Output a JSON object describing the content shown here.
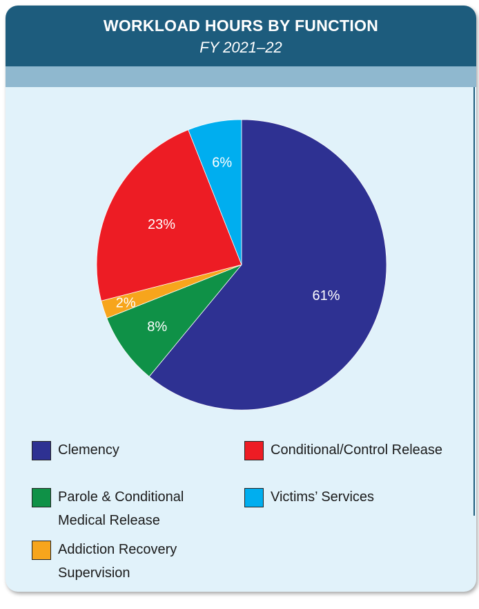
{
  "header": {
    "title": "WORKLOAD HOURS BY FUNCTION",
    "subtitle": "FY 2021–22"
  },
  "chart_data": {
    "type": "pie",
    "title": "WORKLOAD HOURS BY FUNCTION",
    "subtitle": "FY 2021–22",
    "start_angle_deg": 0,
    "direction": "clockwise",
    "slices": [
      {
        "name": "Clemency",
        "value": 61,
        "label": "61%",
        "color": "#2e3192"
      },
      {
        "name": "Parole & Conditional\nMedical Release",
        "value": 8,
        "label": "8%",
        "color": "#0f9147"
      },
      {
        "name": "Addiction Recovery\nSupervision",
        "value": 2,
        "label": "2%",
        "color": "#f7a51c"
      },
      {
        "name": "Conditional/Control Release",
        "value": 23,
        "label": "23%",
        "color": "#ed1c24"
      },
      {
        "name": "Victims’ Services",
        "value": 6,
        "label": "6%",
        "color": "#00aeef"
      }
    ],
    "legend": [
      {
        "label": "Clemency",
        "color": "#2e3192"
      },
      {
        "label": "Conditional/Control Release",
        "color": "#ed1c24"
      },
      {
        "label": "Parole & Conditional\nMedical Release",
        "color": "#0f9147"
      },
      {
        "label": "Victims’ Services",
        "color": "#00aeef"
      },
      {
        "label": "Addiction Recovery\nSupervision",
        "color": "#f7a51c"
      }
    ],
    "legend_placement": "bottom"
  }
}
